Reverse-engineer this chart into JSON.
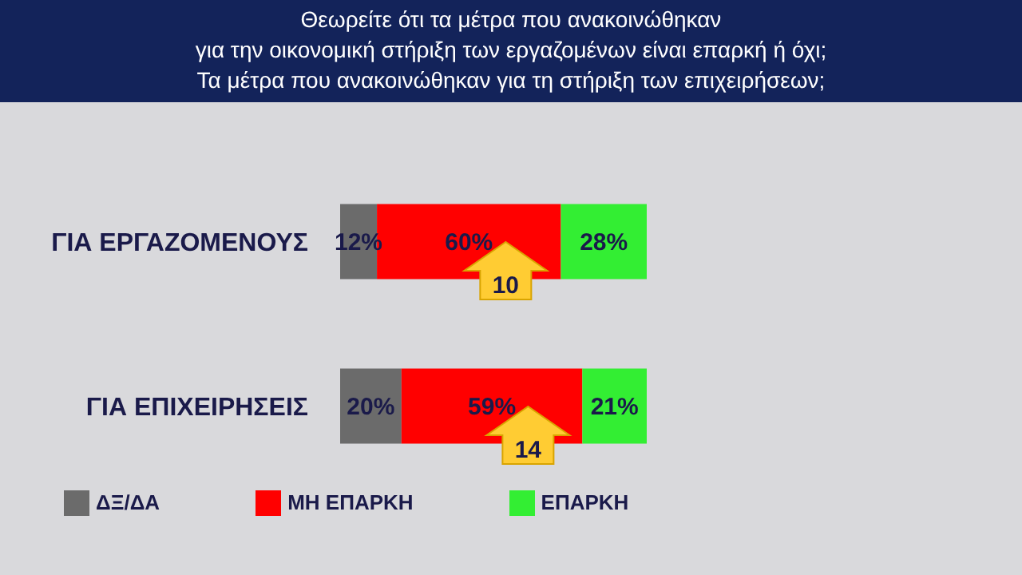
{
  "chart_data": {
    "type": "bar",
    "orientation": "horizontal",
    "stacked": true,
    "title": "Θεωρείτε ότι τα μέτρα που ανακοινώθηκαν\nγια την οικονομική στήριξη των εργαζομένων είναι επαρκή ή όχι;\nΤα μέτρα που ανακοινώθηκαν για τη στήριξη των επιχειρήσεων;",
    "categories": [
      "ΓΙΑ ΕΡΓΑΖΟΜΕΝΟΥΣ",
      "ΓΙΑ ΕΠΙΧΕΙΡΗΣΕΙΣ"
    ],
    "series": [
      {
        "name": "ΔΞ/ΔΑ",
        "color": "#6b6b6b",
        "values": [
          12,
          20
        ],
        "value_labels": [
          "12%",
          "20%"
        ]
      },
      {
        "name": "ΜΗ ΕΠΑΡΚΗ",
        "color": "#ff0000",
        "values": [
          60,
          59
        ],
        "value_labels": [
          "60%",
          "59%"
        ]
      },
      {
        "name": "ΕΠΑΡΚΗ",
        "color": "#33ee33",
        "values": [
          28,
          21
        ],
        "value_labels": [
          "28%",
          "21%"
        ]
      }
    ],
    "xlim": [
      0,
      100
    ],
    "tick_labels": "y",
    "annotations": [
      "10",
      "14"
    ],
    "legend": "bottom"
  }
}
